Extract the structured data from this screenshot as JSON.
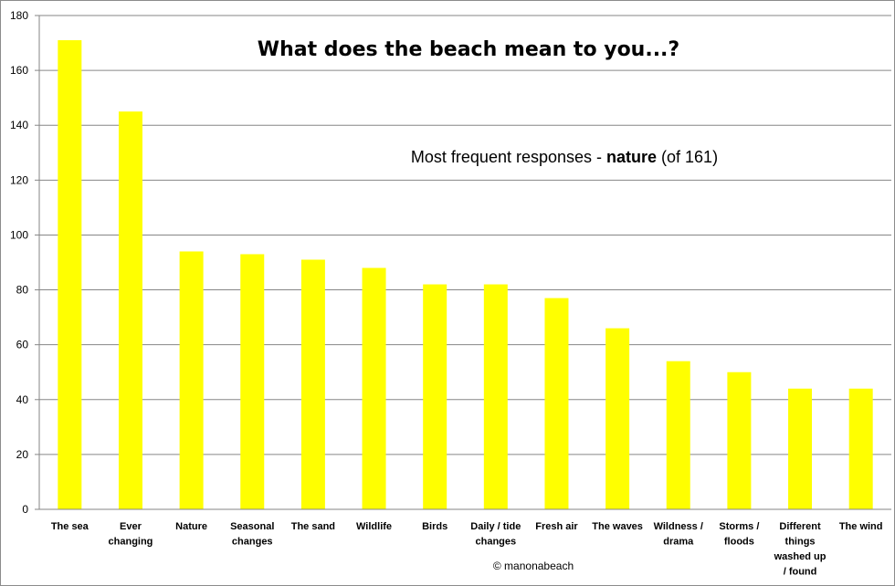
{
  "chart_data": {
    "type": "bar",
    "title": "What does the beach mean to you...?",
    "subtitle": {
      "prefix": "Most frequent  responses  - ",
      "bold": "nature",
      "suffix": " (of 161)"
    },
    "credit": "© manonabeach",
    "xlabel": "",
    "ylabel": "",
    "ylim": [
      0,
      180
    ],
    "yticks": [
      0,
      20,
      40,
      60,
      80,
      100,
      120,
      140,
      160,
      180
    ],
    "grid": true,
    "legend": "none",
    "bar_color": "#ffff00",
    "categories": [
      "The sea",
      "Ever changing",
      "Nature",
      "Seasonal changes",
      "The sand",
      "Wildlife",
      "Birds",
      "Daily / tide changes",
      "Fresh air",
      "The waves",
      "Wildness / drama",
      "Storms / floods",
      "Different things washed up / found",
      "The wind"
    ],
    "category_lines": [
      [
        "The sea"
      ],
      [
        "Ever",
        "changing"
      ],
      [
        "Nature"
      ],
      [
        "Seasonal",
        "changes"
      ],
      [
        "The sand"
      ],
      [
        "Wildlife"
      ],
      [
        "Birds"
      ],
      [
        "Daily / tide",
        "changes"
      ],
      [
        "Fresh air"
      ],
      [
        "The waves"
      ],
      [
        "Wildness /",
        "drama"
      ],
      [
        "Storms /",
        "floods"
      ],
      [
        "Different",
        "things",
        "washed up",
        "/ found"
      ],
      [
        "The wind"
      ]
    ],
    "values": [
      171,
      145,
      94,
      93,
      91,
      88,
      82,
      82,
      77,
      66,
      54,
      50,
      44,
      44
    ]
  }
}
